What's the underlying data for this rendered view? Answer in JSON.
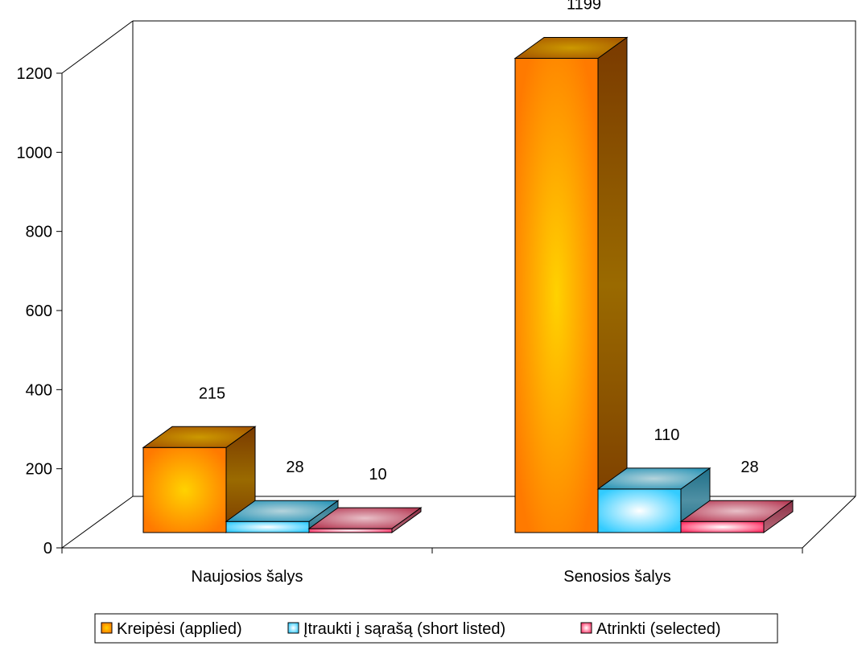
{
  "chart_data": {
    "type": "bar",
    "title": "",
    "xlabel": "",
    "ylabel": "",
    "ylim": [
      0,
      1200
    ],
    "yticks": [
      0,
      200,
      400,
      600,
      800,
      1000,
      1200
    ],
    "categories": [
      "Naujosios šalys",
      "Senosios šalys"
    ],
    "series": [
      {
        "name": "Kreipėsi (applied)",
        "values": [
          215,
          1199
        ],
        "color": "#ff8000"
      },
      {
        "name": "Įtraukti į sąrašą (short listed)",
        "values": [
          28,
          110
        ],
        "color": "#33ccff"
      },
      {
        "name": "Atrinkti (selected)",
        "values": [
          10,
          28
        ],
        "color": "#ff3366"
      }
    ],
    "legend": "bottom",
    "grid": false,
    "data_labels": true,
    "style": "3d"
  }
}
